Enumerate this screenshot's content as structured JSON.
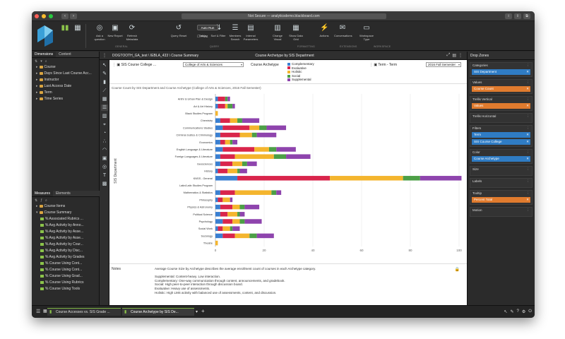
{
  "window": {
    "url": "Not Secure — analyticsdemo.blackboard.com",
    "traffic_colors": [
      "#ff5f57",
      "#febc2e",
      "#28c840"
    ]
  },
  "ribbon": {
    "buttons": [
      {
        "label": "Ask a question",
        "icon": "◎"
      },
      {
        "label": "New Report",
        "icon": "▣"
      },
      {
        "label": "Refresh Metadata",
        "icon": "⟳"
      },
      {
        "label": "Query Reset",
        "icon": "↺"
      },
      {
        "label": "Totals",
        "icon": "Σ"
      },
      {
        "label": "Sort & Filter",
        "icon": "⇅"
      },
      {
        "label": "Members Search",
        "icon": "☰"
      },
      {
        "label": "Internal Parameters",
        "icon": "▤"
      },
      {
        "label": "Change Visual",
        "icon": "▥"
      },
      {
        "label": "Show Data Grid",
        "icon": "▦"
      },
      {
        "label": "Actions",
        "icon": "⚡"
      },
      {
        "label": "Conversations",
        "icon": "✉"
      },
      {
        "label": "Workspace Type",
        "icon": "▭"
      }
    ],
    "autorun": "Auto Run",
    "pivot": "Pivot",
    "groups": [
      "GENERAL",
      "QUERY",
      "FORMATTING",
      "EXTENSIONS",
      "WORKSPACE"
    ]
  },
  "dimensions_panel": {
    "tabs": [
      "Dimensions",
      "Content"
    ],
    "items": [
      "Course",
      "Days Since Last Course Acc...",
      "Instructor",
      "Last Access Date",
      "Term",
      "Time Series"
    ]
  },
  "measures_panel": {
    "tabs": [
      "Measures",
      "Elements"
    ],
    "folders": [
      "Course Items",
      "Course Summary"
    ],
    "items": [
      "% Associated Rubrics ...",
      "% Avg Activity by Anno...",
      "% Avg Activity by Asse...",
      "% Avg Activity by Asse...",
      "% Avg Activity by Cour...",
      "% Avg Activity by Disc...",
      "% Avg Activity by Grades",
      "% Course Using Cont...",
      "% Course Using Cont...",
      "% Course Using Grad...",
      "% Course Using Rubrics",
      "% Course Using Tools"
    ]
  },
  "content_header": {
    "path": "DOGTOOTH_GA_test \\ IEBLA_433 \\ Course Summary",
    "title": "Course Archetype by SIS Department"
  },
  "filters": {
    "sis_label": "SIS Course College ...",
    "sis_value": "College of Arts & Sciences",
    "archetype_label": "Course Archetype",
    "term_label": "Term - Term",
    "term_value": "2016 Fall Semester"
  },
  "chart_title": "Course Count by SIS Department and Course Archetype (College of Arts & Sciences, 2016 Fall Semester)",
  "chart_data": {
    "type": "bar",
    "orientation": "horizontal",
    "stacked": true,
    "ylabel": "SIS Department",
    "xlim": [
      0,
      100
    ],
    "xticks": [
      0,
      20,
      40,
      60,
      80,
      100
    ],
    "categories": [
      "Anthr & Urban Plan & Design",
      "Art & Art History",
      "Black Studies Program",
      "Chemistry",
      "Communications Studies",
      "Criminal Justice & Criminology",
      "Economics",
      "English Language & Literature",
      "Foreign Languages & Literature",
      "Geosciences",
      "History",
      "KNSS - General",
      "Latin/Latin Studies Program",
      "Mathematics & Statistics",
      "Philosophy",
      "Physics & Astronomy",
      "Political Science",
      "Psychology",
      "Social Work",
      "Sociology",
      "Theatre"
    ],
    "series": [
      {
        "name": "Complementary",
        "color": "#3a7fd1",
        "values": [
          1,
          1,
          0,
          2,
          3,
          2,
          2,
          3,
          2,
          2,
          1,
          9,
          0,
          2,
          1,
          2,
          2,
          3,
          1,
          3,
          0
        ]
      },
      {
        "name": "Evaluative",
        "color": "#d9254b",
        "values": [
          3,
          3,
          0,
          4,
          11,
          8,
          2,
          13,
          6,
          5,
          4,
          38,
          0,
          6,
          2,
          5,
          3,
          4,
          2,
          5,
          0
        ]
      },
      {
        "name": "Holistic",
        "color": "#f4b52e",
        "values": [
          0,
          1,
          1,
          3,
          4,
          5,
          2,
          6,
          16,
          4,
          4,
          30,
          0,
          15,
          3,
          3,
          4,
          3,
          3,
          6,
          1
        ]
      },
      {
        "name": "Social",
        "color": "#4c9f46",
        "values": [
          1,
          2,
          0,
          2,
          3,
          2,
          1,
          3,
          5,
          2,
          1,
          7,
          0,
          2,
          0,
          2,
          1,
          2,
          1,
          3,
          0
        ]
      },
      {
        "name": "Supplemental",
        "color": "#8e44ad",
        "values": [
          1,
          1,
          0,
          7,
          8,
          8,
          2,
          8,
          10,
          4,
          3,
          17,
          0,
          2,
          1,
          6,
          2,
          7,
          3,
          7,
          0
        ]
      }
    ]
  },
  "notes": {
    "label": "Notes",
    "text": "Average Course Size by Archetype describes the average enrollment count of courses in each Archetype category.\n\nSupplemental: Content-heavy. Low interaction.\nComplementary: One-way communication through content, announcements, and gradebook.\nSocial: High peer-to-peer interaction through discussion board.\nEvaluative: Heavy use of assessments.\nHolistic: High LMS activity with balanced use of assessments, content, and discussion."
  },
  "drop_zones": {
    "title": "Drop Zones",
    "zones": [
      {
        "name": "Categories",
        "pills": [
          {
            "label": "SIS Department",
            "color": "#2f7cc4"
          }
        ]
      },
      {
        "name": "Values",
        "pills": [
          {
            "label": "Course Count",
            "color": "#e07b2e"
          }
        ]
      },
      {
        "name": "Trellis Vertical",
        "pills": [
          {
            "label": "Values",
            "color": "#e07b2e"
          }
        ]
      },
      {
        "name": "Trellis Horizontal",
        "pills": []
      },
      {
        "name": "Filters",
        "pills": [
          {
            "label": "Term",
            "color": "#2f7cc4"
          },
          {
            "label": "SIS Course College",
            "color": "#2f7cc4"
          }
        ]
      },
      {
        "name": "Color",
        "pills": [
          {
            "label": "Course Archetype",
            "color": "#2f7cc4"
          }
        ]
      },
      {
        "name": "Size",
        "pills": []
      },
      {
        "name": "Labels",
        "pills": []
      },
      {
        "name": "Tooltip",
        "pills": [
          {
            "label": "Percent Total",
            "color": "#e07b2e"
          }
        ]
      },
      {
        "name": "Motion",
        "pills": []
      }
    ]
  },
  "bottom_tabs": [
    "Course Accesses vs. SIS Grade ...",
    "Course Archetype by SIS De..."
  ]
}
